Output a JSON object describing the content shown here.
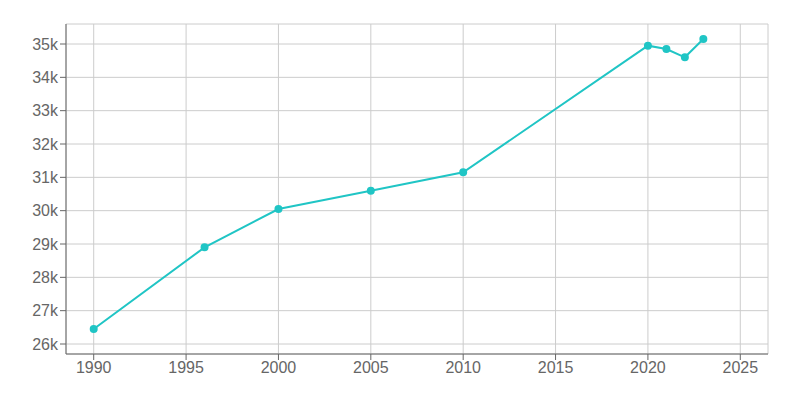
{
  "chart_data": {
    "type": "line",
    "x": [
      1990,
      1996,
      2000,
      2005,
      2010,
      2020,
      2021,
      2022,
      2023
    ],
    "series": [
      {
        "color": "#20C5C5",
        "values": [
          26450,
          28900,
          30050,
          30600,
          31150,
          34950,
          34850,
          34600,
          35150
        ],
        "marker": "circle"
      }
    ],
    "xlim": [
      1988.5,
      2026.5
    ],
    "ylim": [
      25700,
      35600
    ],
    "xticks": [
      1990,
      1995,
      2000,
      2005,
      2010,
      2015,
      2020,
      2025
    ],
    "yticks": [
      {
        "value": 26000,
        "label": "26k"
      },
      {
        "value": 27000,
        "label": "27k"
      },
      {
        "value": 28000,
        "label": "28k"
      },
      {
        "value": 29000,
        "label": "29k"
      },
      {
        "value": 30000,
        "label": "30k"
      },
      {
        "value": 31000,
        "label": "31k"
      },
      {
        "value": 32000,
        "label": "32k"
      },
      {
        "value": 33000,
        "label": "33k"
      },
      {
        "value": 34000,
        "label": "34k"
      },
      {
        "value": 35000,
        "label": "35k"
      }
    ],
    "grid": true
  }
}
